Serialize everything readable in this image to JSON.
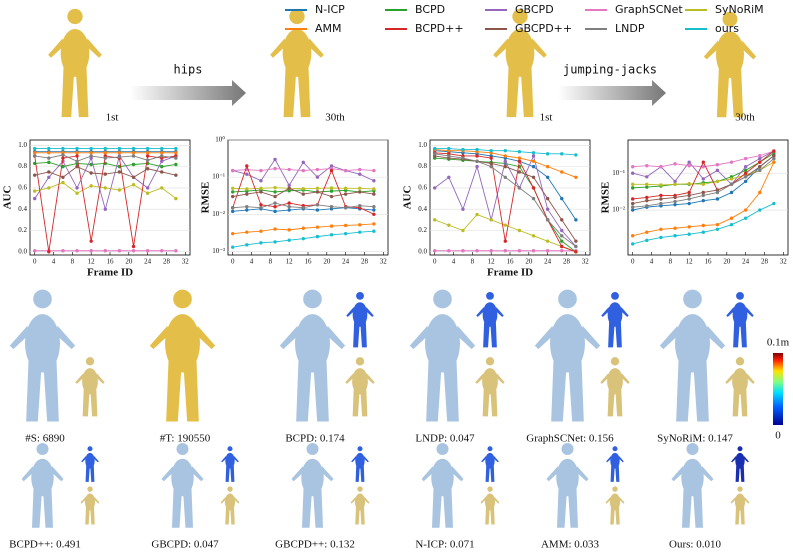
{
  "legend": [
    "N-ICP",
    "BCPD",
    "GBCPD",
    "GraphSCNet",
    "SyNoRiM",
    "AMM",
    "BCPD++",
    "GBCPD++",
    "LNDP",
    "ours"
  ],
  "top_row": {
    "motions": [
      "hips",
      "jumping-jacks"
    ],
    "labels": [
      "1st",
      "30th",
      "1st",
      "30th"
    ]
  },
  "chart_data": [
    {
      "type": "line",
      "ylabel": "AUC",
      "xlabel": "Frame ID",
      "x": [
        0,
        3,
        6,
        9,
        12,
        15,
        18,
        21,
        24,
        27,
        30
      ],
      "xlim": [
        -1,
        33
      ],
      "xticks": [
        0,
        4,
        8,
        12,
        16,
        20,
        24,
        28,
        32
      ],
      "ylim": [
        -0.03,
        1.05
      ],
      "yticks": [
        {
          "value": 0,
          "label": "0.0"
        },
        0.2,
        0.4,
        0.6,
        0.8,
        {
          "value": 1,
          "label": "1.0"
        }
      ],
      "log": false,
      "series": [
        {
          "color": "#1f77b4",
          "values": [
            0.94,
            0.94,
            0.94,
            0.94,
            0.94,
            0.94,
            0.94,
            0.94,
            0.94,
            0.94,
            0.94
          ]
        },
        {
          "color": "#2ca02c",
          "values": [
            0.83,
            0.84,
            0.8,
            0.83,
            0.82,
            0.83,
            0.8,
            0.82,
            0.83,
            0.8,
            0.82
          ]
        },
        {
          "color": "#9467bd",
          "values": [
            0.5,
            0.7,
            0.85,
            0.6,
            0.88,
            0.4,
            0.9,
            0.7,
            0.6,
            0.85,
            0.9
          ]
        },
        {
          "color": "#e377c2",
          "values": [
            0.01,
            0.01,
            0.01,
            0.01,
            0.01,
            0.01,
            0.01,
            0.01,
            0.01,
            0.01,
            0.01
          ]
        },
        {
          "color": "#bcbd22",
          "values": [
            0.57,
            0.6,
            0.65,
            0.55,
            0.62,
            0.6,
            0.58,
            0.63,
            0.55,
            0.6,
            0.5
          ]
        },
        {
          "color": "#ff7f0e",
          "values": [
            0.93,
            0.93,
            0.93,
            0.93,
            0.93,
            0.93,
            0.93,
            0.93,
            0.93,
            0.93,
            0.93
          ]
        },
        {
          "color": "#d62728",
          "values": [
            0.9,
            0,
            0.88,
            0.9,
            0.1,
            0.9,
            0.88,
            0.05,
            0.9,
            0.88,
            0.9
          ]
        },
        {
          "color": "#8c564b",
          "values": [
            0.72,
            0.75,
            0.7,
            0.8,
            0.74,
            0.73,
            0.75,
            0.7,
            0.78,
            0.75,
            0.72
          ]
        },
        {
          "color": "#7f7f7f",
          "values": [
            0.9,
            0.88,
            0.91,
            0.85,
            0.9,
            0.88,
            0.89,
            0.9,
            0.86,
            0.9,
            0.88
          ]
        },
        {
          "color": "#17becf",
          "values": [
            0.97,
            0.97,
            0.97,
            0.97,
            0.97,
            0.97,
            0.97,
            0.97,
            0.97,
            0.97,
            0.97
          ]
        }
      ]
    },
    {
      "type": "line",
      "ylabel": "RMSE",
      "x": [
        0,
        3,
        6,
        9,
        12,
        15,
        18,
        21,
        24,
        27,
        30
      ],
      "xlim": [
        -1,
        33
      ],
      "xticks": [
        0,
        4,
        8,
        12,
        16,
        20,
        24,
        28,
        32
      ],
      "ylim": [
        0.0008,
        1
      ],
      "yticks": [
        {
          "value": 0.001,
          "label": "10⁻³"
        },
        {
          "value": 0.01,
          "label": "10⁻²"
        },
        {
          "value": 0.1,
          "label": "10⁻¹"
        },
        {
          "value": 1,
          "label": "10⁰"
        }
      ],
      "log": true,
      "series": [
        {
          "color": "#1f77b4",
          "values": [
            0.012,
            0.013,
            0.014,
            0.012,
            0.013,
            0.014,
            0.013,
            0.014,
            0.015,
            0.014,
            0.013
          ]
        },
        {
          "color": "#2ca02c",
          "values": [
            0.04,
            0.042,
            0.045,
            0.04,
            0.043,
            0.045,
            0.04,
            0.042,
            0.044,
            0.04,
            0.043
          ]
        },
        {
          "color": "#9467bd",
          "values": [
            0.15,
            0.12,
            0.08,
            0.3,
            0.06,
            0.25,
            0.1,
            0.2,
            0.15,
            0.12,
            0.08
          ]
        },
        {
          "color": "#e377c2",
          "values": [
            0.15,
            0.16,
            0.15,
            0.17,
            0.16,
            0.15,
            0.16,
            0.17,
            0.15,
            0.16,
            0.15
          ]
        },
        {
          "color": "#bcbd22",
          "values": [
            0.05,
            0.048,
            0.05,
            0.052,
            0.05,
            0.049,
            0.05,
            0.051,
            0.05,
            0.05,
            0.048
          ]
        },
        {
          "color": "#ff7f0e",
          "values": [
            0.003,
            0.0033,
            0.0035,
            0.004,
            0.0038,
            0.0042,
            0.0045,
            0.0048,
            0.005,
            0.0052,
            0.0055
          ]
        },
        {
          "color": "#d62728",
          "values": [
            0.015,
            0.2,
            0.018,
            0.016,
            0.02,
            0.017,
            0.018,
            0.15,
            0.016,
            0.015,
            0.01
          ]
        },
        {
          "color": "#8c564b",
          "values": [
            0.03,
            0.035,
            0.04,
            0.03,
            0.05,
            0.035,
            0.04,
            0.03,
            0.035,
            0.04,
            0.035
          ]
        },
        {
          "color": "#7f7f7f",
          "values": [
            0.015,
            0.016,
            0.015,
            0.02,
            0.016,
            0.015,
            0.018,
            0.016,
            0.015,
            0.017,
            0.016
          ]
        },
        {
          "color": "#17becf",
          "values": [
            0.0013,
            0.0015,
            0.0017,
            0.0018,
            0.002,
            0.0022,
            0.0025,
            0.0028,
            0.003,
            0.0033,
            0.0035
          ]
        }
      ]
    },
    {
      "type": "line",
      "ylabel": "AUC",
      "xlabel": "Frame ID",
      "x": [
        0,
        3,
        6,
        9,
        12,
        15,
        18,
        21,
        24,
        27,
        30
      ],
      "xlim": [
        -1,
        33
      ],
      "xticks": [
        0,
        4,
        8,
        12,
        16,
        20,
        24,
        28,
        32
      ],
      "ylim": [
        -0.03,
        1.05
      ],
      "yticks": [
        {
          "value": 0,
          "label": "0.0"
        },
        0.2,
        0.4,
        0.6,
        0.8,
        {
          "value": 1,
          "label": "1.0"
        }
      ],
      "log": false,
      "series": [
        {
          "color": "#1f77b4",
          "values": [
            0.95,
            0.94,
            0.93,
            0.92,
            0.9,
            0.88,
            0.85,
            0.8,
            0.7,
            0.5,
            0.3
          ]
        },
        {
          "color": "#2ca02c",
          "values": [
            0.88,
            0.87,
            0.86,
            0.85,
            0.84,
            0.83,
            0.8,
            0.6,
            0.3,
            0.1,
            0
          ]
        },
        {
          "color": "#9467bd",
          "values": [
            0.6,
            0.7,
            0.4,
            0.8,
            0.3,
            0.85,
            0.6,
            0.9,
            0.4,
            0.2,
            0.05
          ]
        },
        {
          "color": "#e377c2",
          "values": [
            0.01,
            0.01,
            0.01,
            0.01,
            0.01,
            0.01,
            0.01,
            0.01,
            0.01,
            0.01,
            0.01
          ]
        },
        {
          "color": "#bcbd22",
          "values": [
            0.3,
            0.25,
            0.2,
            0.35,
            0.3,
            0.25,
            0.2,
            0.15,
            0.1,
            0.05,
            0
          ]
        },
        {
          "color": "#ff7f0e",
          "values": [
            0.96,
            0.95,
            0.95,
            0.94,
            0.93,
            0.9,
            0.88,
            0.85,
            0.8,
            0.75,
            0.7
          ]
        },
        {
          "color": "#d62728",
          "values": [
            0.93,
            0.92,
            0.9,
            0.9,
            0.88,
            0.1,
            0.85,
            0.6,
            0.3,
            0.05,
            0
          ]
        },
        {
          "color": "#8c564b",
          "values": [
            0.9,
            0.88,
            0.87,
            0.85,
            0.83,
            0.8,
            0.75,
            0.7,
            0.5,
            0.3,
            0.1
          ]
        },
        {
          "color": "#7f7f7f",
          "values": [
            0.92,
            0.9,
            0.88,
            0.85,
            0.8,
            0.7,
            0.6,
            0.5,
            0.3,
            0.15,
            0.05
          ]
        },
        {
          "color": "#17becf",
          "values": [
            0.97,
            0.97,
            0.96,
            0.96,
            0.95,
            0.95,
            0.94,
            0.93,
            0.92,
            0.92,
            0.91
          ]
        }
      ]
    },
    {
      "type": "line",
      "ylabel": "RMSE",
      "x": [
        0,
        3,
        6,
        9,
        12,
        15,
        18,
        21,
        24,
        27,
        30
      ],
      "xlim": [
        -1,
        33
      ],
      "xticks": [
        0,
        4,
        8,
        12,
        16,
        20,
        24,
        28,
        32
      ],
      "ylim": [
        0.0006,
        0.8
      ],
      "yticks": [
        {
          "value": 0.01,
          "label": "10⁻²"
        },
        {
          "value": 0.1,
          "label": "10⁻¹"
        }
      ],
      "log": true,
      "series": [
        {
          "color": "#1f77b4",
          "values": [
            0.01,
            0.012,
            0.013,
            0.014,
            0.015,
            0.018,
            0.02,
            0.03,
            0.06,
            0.15,
            0.3
          ]
        },
        {
          "color": "#2ca02c",
          "values": [
            0.04,
            0.042,
            0.045,
            0.05,
            0.05,
            0.055,
            0.06,
            0.08,
            0.12,
            0.2,
            0.35
          ]
        },
        {
          "color": "#9467bd",
          "values": [
            0.1,
            0.08,
            0.15,
            0.06,
            0.2,
            0.07,
            0.12,
            0.05,
            0.15,
            0.25,
            0.4
          ]
        },
        {
          "color": "#e377c2",
          "values": [
            0.15,
            0.16,
            0.15,
            0.18,
            0.16,
            0.15,
            0.17,
            0.2,
            0.25,
            0.3,
            0.4
          ]
        },
        {
          "color": "#bcbd22",
          "values": [
            0.05,
            0.05,
            0.048,
            0.05,
            0.052,
            0.05,
            0.06,
            0.07,
            0.09,
            0.12,
            0.2
          ]
        },
        {
          "color": "#ff7f0e",
          "values": [
            0.002,
            0.0025,
            0.003,
            0.0032,
            0.0035,
            0.0038,
            0.004,
            0.006,
            0.01,
            0.03,
            0.2
          ]
        },
        {
          "color": "#d62728",
          "values": [
            0.02,
            0.022,
            0.025,
            0.025,
            0.03,
            0.2,
            0.035,
            0.05,
            0.1,
            0.2,
            0.4
          ]
        },
        {
          "color": "#8c564b",
          "values": [
            0.015,
            0.018,
            0.02,
            0.022,
            0.025,
            0.03,
            0.035,
            0.05,
            0.08,
            0.15,
            0.3
          ]
        },
        {
          "color": "#7f7f7f",
          "values": [
            0.012,
            0.013,
            0.015,
            0.017,
            0.02,
            0.025,
            0.03,
            0.05,
            0.08,
            0.12,
            0.25
          ]
        },
        {
          "color": "#17becf",
          "values": [
            0.0012,
            0.0015,
            0.0018,
            0.002,
            0.0022,
            0.0025,
            0.003,
            0.004,
            0.006,
            0.01,
            0.015
          ]
        }
      ]
    }
  ],
  "captions": [
    "#S: 6890",
    "#T: 190550",
    "BCPD: 0.174",
    "LNDP: 0.047",
    "GraphSCNet: 0.156",
    "SyNoRiM: 0.147",
    "BCPD++: 0.491",
    "GBCPD: 0.047",
    "GBCPD++: 0.132",
    "N-ICP: 0.071",
    "AMM: 0.033",
    "Ours: 0.010"
  ],
  "colorbar": {
    "max": "0.1m",
    "min": "0"
  }
}
